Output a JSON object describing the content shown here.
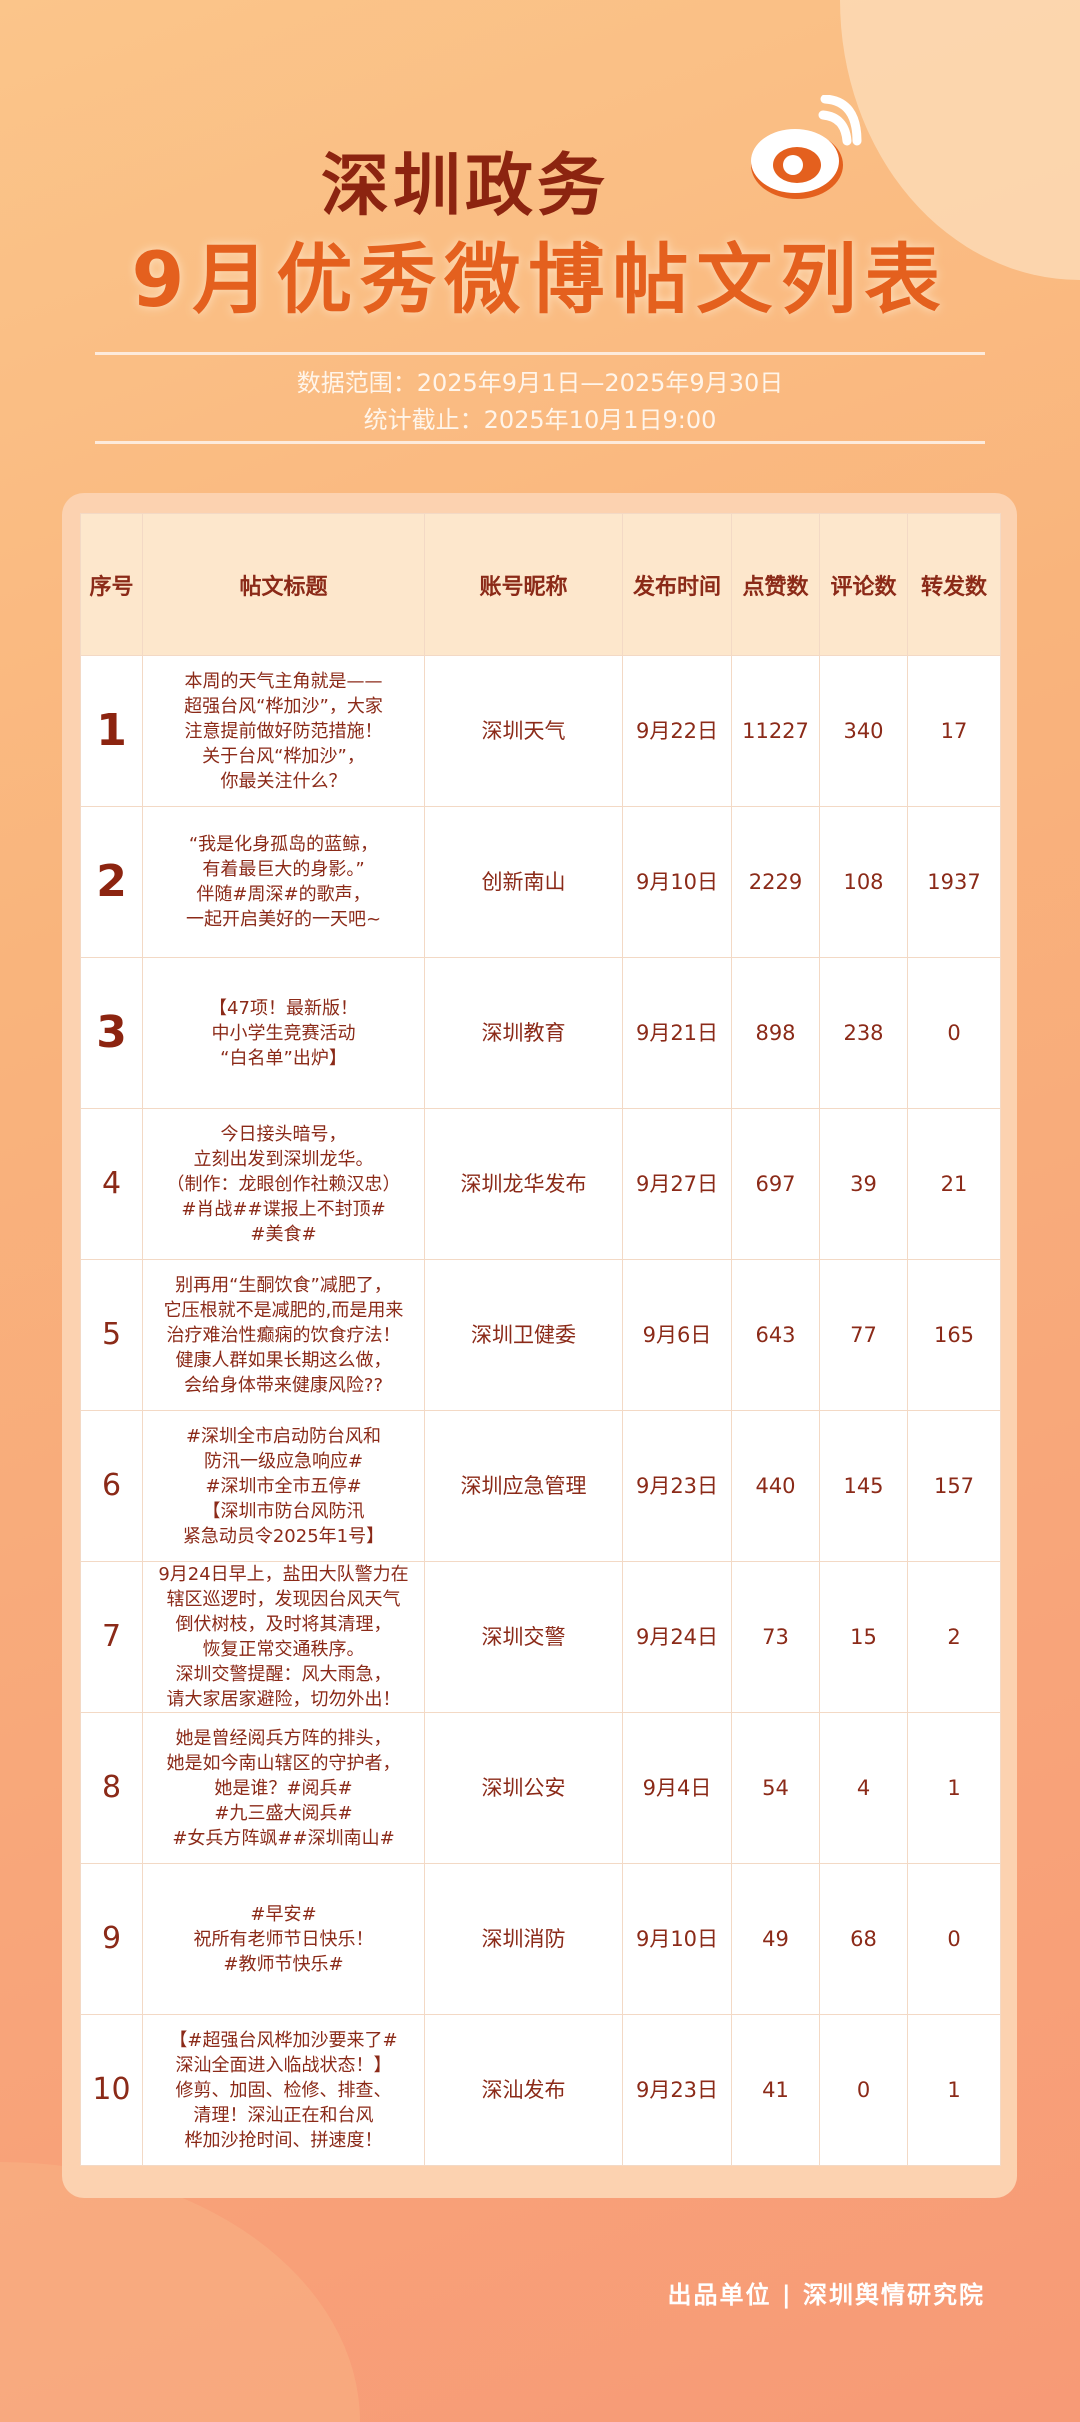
{
  "header": {
    "title_line1": "深圳政务",
    "title_line2": "9月优秀微博帖文列表",
    "logo": "weibo-logo",
    "data_range": "数据范围：2025年9月1日—2025年9月30日",
    "cutoff": "统计截止：2025年10月1日9:00"
  },
  "table": {
    "columns": [
      "序号",
      "帖文标题",
      "账号昵称",
      "发布时间",
      "点赞数",
      "评论数",
      "转发数"
    ],
    "rows": [
      {
        "rank": "1",
        "title": "本周的天气主角就是——\n超强台风“桦加沙”，大家\n注意提前做好防范措施！\n关于台风“桦加沙”，\n你最关注什么？",
        "account": "深圳天气",
        "date": "9月22日",
        "likes": "11227",
        "comments": "340",
        "reposts": "17"
      },
      {
        "rank": "2",
        "title": "“我是化身孤岛的蓝鲸，\n有着最巨大的身影。”\n伴随#周深#的歌声，\n一起开启美好的一天吧~",
        "account": "创新南山",
        "date": "9月10日",
        "likes": "2229",
        "comments": "108",
        "reposts": "1937"
      },
      {
        "rank": "3",
        "title": "【47项！最新版！\n中小学生竞赛活动\n“白名单”出炉】",
        "account": "深圳教育",
        "date": "9月21日",
        "likes": "898",
        "comments": "238",
        "reposts": "0"
      },
      {
        "rank": "4",
        "title": "今日接头暗号，\n立刻出发到深圳龙华。\n（制作：龙眼创作社赖汉忠）\n#肖战##谍报上不封顶#\n#美食#",
        "account": "深圳龙华发布",
        "date": "9月27日",
        "likes": "697",
        "comments": "39",
        "reposts": "21"
      },
      {
        "rank": "5",
        "title": "别再用“生酮饮食”减肥了，\n它压根就不是减肥的,而是用来\n治疗难治性癫痫的饮食疗法！\n健康人群如果长期这么做，\n会给身体带来健康风险??",
        "account": "深圳卫健委",
        "date": "9月6日",
        "likes": "643",
        "comments": "77",
        "reposts": "165"
      },
      {
        "rank": "6",
        "title": "#深圳全市启动防台风和\n防汛一级应急响应#\n#深圳市全市五停#\n【深圳市防台风防汛\n紧急动员令2025年1号】",
        "account": "深圳应急管理",
        "date": "9月23日",
        "likes": "440",
        "comments": "145",
        "reposts": "157"
      },
      {
        "rank": "7",
        "title": "9月24日早上，盐田大队警力在\n辖区巡逻时，发现因台风天气\n倒伏树枝，及时将其清理，\n恢复正常交通秩序。\n深圳交警提醒：风大雨急，\n请大家居家避险，切勿外出！",
        "account": "深圳交警",
        "date": "9月24日",
        "likes": "73",
        "comments": "15",
        "reposts": "2"
      },
      {
        "rank": "8",
        "title": "她是曾经阅兵方阵的排头，\n她是如今南山辖区的守护者，\n她是谁？#阅兵#\n#九三盛大阅兵#\n#女兵方阵飒##深圳南山#",
        "account": "深圳公安",
        "date": "9月4日",
        "likes": "54",
        "comments": "4",
        "reposts": "1"
      },
      {
        "rank": "9",
        "title": "#早安#\n祝所有老师节日快乐！\n#教师节快乐#",
        "account": "深圳消防",
        "date": "9月10日",
        "likes": "49",
        "comments": "68",
        "reposts": "0"
      },
      {
        "rank": "10",
        "title": "【#超强台风桦加沙要来了#\n深汕全面进入临战状态！】\n修剪、加固、检修、排查、\n清理！深汕正在和台风\n桦加沙抢时间、拼速度！",
        "account": "深汕发布",
        "date": "9月23日",
        "likes": "41",
        "comments": "0",
        "reposts": "1"
      }
    ]
  },
  "footer": {
    "producer": "出品单位 | 深圳舆情研究院"
  },
  "colors": {
    "title_dark": "#8c2410",
    "title_orange": "#e4601e",
    "text": "#8b2a18"
  }
}
